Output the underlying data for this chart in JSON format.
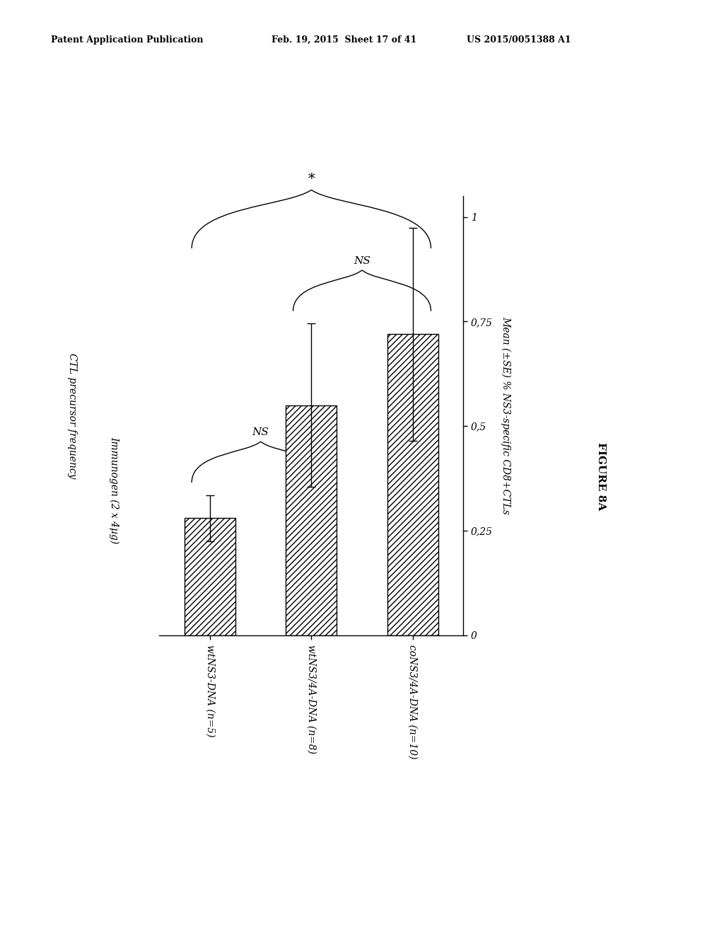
{
  "categories": [
    "wtNS3-DNA (n=5)",
    "wtNS3/4A-DNA (n=8)",
    "coNS3/4A-DNA (n=10)"
  ],
  "values": [
    0.28,
    0.55,
    0.72
  ],
  "errors": [
    0.055,
    0.195,
    0.255
  ],
  "ylim": [
    0,
    1.05
  ],
  "yticks": [
    0,
    0.25,
    0.5,
    0.75,
    1
  ],
  "ytick_labels": [
    "0",
    "0,25",
    "0,5",
    "0,75",
    "1"
  ],
  "ylabel": "Mean (±SE) % NS3-specific CD8+CTLs",
  "xlabel_top": "CTL precursor frequency",
  "xlabel_sub": "Immunogen (2 x 4µg)",
  "figure_label": "FIGURE 8A",
  "hatch": "////",
  "background_color": "#ffffff",
  "header_left": "Patent Application Publication",
  "header_mid": "Feb. 19, 2015  Sheet 17 of 41",
  "header_right": "US 2015/0051388 A1"
}
